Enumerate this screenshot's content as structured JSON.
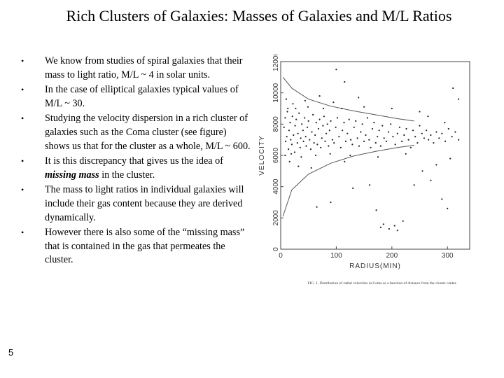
{
  "slide": {
    "title": "Rich Clusters of Galaxies: Masses of Galaxies and M/L Ratios",
    "page_number": "5"
  },
  "bullets": [
    {
      "text": "We know from studies of spiral galaxies that their mass to light ratio, M/L ~ 4 in solar units."
    },
    {
      "text": "In the case of elliptical galaxies typical values of M/L ~ 30."
    },
    {
      "text": "Studying the velocity dispersion in a rich cluster of galaxies such as the Coma cluster (see figure) shows us that for the cluster as a whole, M/L ~ 600."
    },
    {
      "text_before": "It is this discrepancy that gives us the idea of ",
      "emphasis": "missing mass",
      "text_after": " in the cluster."
    },
    {
      "text": "The mass to light ratios in individual galaxies will include their gas content because they are derived dynamically."
    },
    {
      "text": "However there is also some of the “missing mass” that is contained in the gas that permeates the cluster."
    }
  ],
  "chart_data": {
    "type": "scatter",
    "title": "",
    "xlabel": "RADIUS(MIN)",
    "ylabel": "VELOCITY",
    "xlim": [
      0,
      340
    ],
    "ylim": [
      0,
      12000
    ],
    "xticks": [
      "0",
      "100",
      "200",
      "300"
    ],
    "yticks": [
      "0",
      "2000",
      "4000",
      "6000",
      "8000",
      "10000",
      "12000"
    ],
    "caption": "FIG. 1. Distribution of radial velocities in Coma as a function of distance from the cluster center.",
    "envelope_upper": [
      [
        4,
        11000
      ],
      [
        20,
        10300
      ],
      [
        50,
        9600
      ],
      [
        90,
        9150
      ],
      [
        130,
        8850
      ],
      [
        170,
        8600
      ],
      [
        210,
        8350
      ],
      [
        240,
        8200
      ]
    ],
    "envelope_lower": [
      [
        4,
        2100
      ],
      [
        20,
        3800
      ],
      [
        50,
        4800
      ],
      [
        90,
        5500
      ],
      [
        130,
        5950
      ],
      [
        170,
        6250
      ],
      [
        210,
        6500
      ],
      [
        240,
        6650
      ]
    ],
    "points": [
      [
        6,
        7800
      ],
      [
        8,
        8400
      ],
      [
        9,
        6900
      ],
      [
        11,
        7200
      ],
      [
        12,
        8800
      ],
      [
        14,
        6400
      ],
      [
        15,
        7600
      ],
      [
        17,
        8100
      ],
      [
        18,
        7000
      ],
      [
        20,
        6700
      ],
      [
        21,
        8500
      ],
      [
        23,
        7300
      ],
      [
        25,
        6200
      ],
      [
        26,
        7900
      ],
      [
        28,
        8300
      ],
      [
        30,
        6800
      ],
      [
        31,
        7400
      ],
      [
        33,
        8700
      ],
      [
        35,
        6500
      ],
      [
        36,
        7100
      ],
      [
        38,
        8000
      ],
      [
        40,
        7600
      ],
      [
        41,
        6900
      ],
      [
        43,
        8400
      ],
      [
        45,
        7200
      ],
      [
        46,
        6600
      ],
      [
        48,
        7800
      ],
      [
        50,
        8200
      ],
      [
        52,
        7000
      ],
      [
        54,
        6400
      ],
      [
        56,
        7500
      ],
      [
        58,
        8600
      ],
      [
        60,
        6800
      ],
      [
        62,
        7300
      ],
      [
        64,
        8100
      ],
      [
        66,
        6700
      ],
      [
        68,
        7700
      ],
      [
        70,
        8300
      ],
      [
        72,
        6500
      ],
      [
        74,
        7100
      ],
      [
        76,
        7900
      ],
      [
        78,
        8500
      ],
      [
        80,
        6900
      ],
      [
        82,
        7400
      ],
      [
        84,
        8000
      ],
      [
        86,
        6600
      ],
      [
        88,
        7600
      ],
      [
        90,
        8200
      ],
      [
        93,
        7000
      ],
      [
        96,
        6800
      ],
      [
        99,
        7800
      ],
      [
        102,
        8400
      ],
      [
        105,
        7200
      ],
      [
        108,
        6500
      ],
      [
        111,
        7600
      ],
      [
        114,
        8100
      ],
      [
        117,
        6900
      ],
      [
        120,
        7400
      ],
      [
        123,
        8300
      ],
      [
        126,
        7000
      ],
      [
        129,
        6700
      ],
      [
        132,
        7800
      ],
      [
        135,
        8200
      ],
      [
        138,
        7100
      ],
      [
        141,
        6600
      ],
      [
        144,
        7500
      ],
      [
        147,
        8000
      ],
      [
        150,
        6900
      ],
      [
        153,
        7300
      ],
      [
        156,
        8400
      ],
      [
        159,
        7000
      ],
      [
        162,
        6500
      ],
      [
        165,
        7700
      ],
      [
        168,
        8100
      ],
      [
        171,
        6800
      ],
      [
        174,
        7200
      ],
      [
        177,
        7600
      ],
      [
        180,
        6600
      ],
      [
        183,
        7900
      ],
      [
        186,
        7100
      ],
      [
        190,
        6900
      ],
      [
        194,
        7500
      ],
      [
        198,
        8000
      ],
      [
        202,
        7200
      ],
      [
        206,
        6700
      ],
      [
        210,
        7400
      ],
      [
        214,
        7800
      ],
      [
        218,
        6900
      ],
      [
        222,
        7300
      ],
      [
        226,
        7700
      ],
      [
        230,
        7000
      ],
      [
        234,
        6500
      ],
      [
        238,
        7600
      ],
      [
        242,
        7200
      ],
      [
        246,
        6800
      ],
      [
        250,
        7900
      ],
      [
        254,
        7400
      ],
      [
        258,
        7100
      ],
      [
        262,
        7600
      ],
      [
        266,
        7000
      ],
      [
        270,
        7300
      ],
      [
        275,
        6800
      ],
      [
        280,
        7500
      ],
      [
        285,
        7100
      ],
      [
        290,
        7400
      ],
      [
        296,
        6900
      ],
      [
        302,
        7700
      ],
      [
        308,
        7200
      ],
      [
        314,
        7500
      ],
      [
        320,
        7000
      ],
      [
        10,
        9600
      ],
      [
        16,
        5600
      ],
      [
        22,
        9300
      ],
      [
        32,
        5300
      ],
      [
        44,
        9500
      ],
      [
        55,
        5200
      ],
      [
        70,
        9800
      ],
      [
        95,
        9400
      ],
      [
        115,
        5600
      ],
      [
        140,
        9700
      ],
      [
        100,
        11500
      ],
      [
        115,
        10700
      ],
      [
        160,
        4100
      ],
      [
        180,
        1400
      ],
      [
        185,
        1600
      ],
      [
        195,
        1300
      ],
      [
        205,
        1500
      ],
      [
        210,
        1200
      ],
      [
        220,
        1800
      ],
      [
        172,
        2500
      ],
      [
        65,
        2700
      ],
      [
        90,
        3000
      ],
      [
        130,
        3900
      ],
      [
        255,
        5000
      ],
      [
        270,
        4400
      ],
      [
        290,
        3200
      ],
      [
        300,
        2600
      ],
      [
        310,
        10300
      ],
      [
        320,
        9600
      ],
      [
        240,
        4100
      ],
      [
        8,
        6000
      ],
      [
        13,
        9000
      ],
      [
        19,
        6100
      ],
      [
        27,
        9000
      ],
      [
        37,
        5900
      ],
      [
        49,
        9100
      ],
      [
        63,
        6000
      ],
      [
        77,
        9000
      ],
      [
        89,
        6100
      ],
      [
        110,
        9000
      ],
      [
        125,
        6000
      ],
      [
        150,
        9100
      ],
      [
        175,
        5900
      ],
      [
        200,
        9000
      ],
      [
        225,
        6100
      ],
      [
        250,
        8800
      ],
      [
        265,
        8500
      ],
      [
        280,
        5400
      ],
      [
        295,
        8100
      ],
      [
        305,
        5800
      ]
    ]
  },
  "colors": {
    "text": "#000000",
    "plot_frame": "#444444",
    "points": "#222222",
    "curve": "#555555"
  }
}
